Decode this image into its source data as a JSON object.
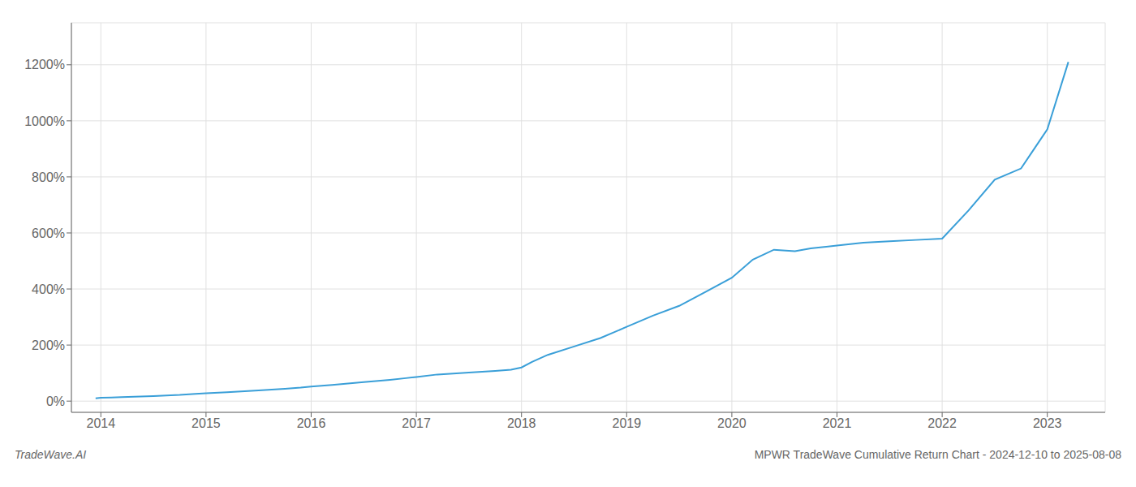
{
  "chart_data": {
    "type": "line",
    "title": "MPWR TradeWave Cumulative Return Chart - 2024-12-10 to 2025-08-08",
    "subtitle": "TradeWave.AI",
    "x": [
      2013.95,
      2014.0,
      2014.1,
      2014.2,
      2014.5,
      2014.75,
      2014.9,
      2015.0,
      2015.2,
      2015.5,
      2015.75,
      2015.9,
      2016.0,
      2016.2,
      2016.5,
      2016.75,
      2016.9,
      2017.0,
      2017.2,
      2017.5,
      2017.75,
      2017.9,
      2018.0,
      2018.1,
      2018.25,
      2018.5,
      2018.75,
      2019.0,
      2019.25,
      2019.5,
      2019.75,
      2020.0,
      2020.2,
      2020.4,
      2020.6,
      2020.75,
      2021.0,
      2021.25,
      2021.5,
      2021.75,
      2022.0,
      2022.25,
      2022.5,
      2022.75,
      2023.0,
      2023.2
    ],
    "values": [
      10,
      12,
      13,
      14,
      18,
      22,
      26,
      28,
      32,
      38,
      44,
      48,
      52,
      58,
      68,
      76,
      82,
      86,
      95,
      102,
      108,
      112,
      120,
      140,
      165,
      195,
      225,
      265,
      305,
      340,
      390,
      440,
      505,
      540,
      535,
      545,
      555,
      565,
      570,
      575,
      580,
      680,
      790,
      830,
      970,
      1210
    ],
    "color": "#3a9fd8",
    "xlim": [
      2013.72,
      2023.55
    ],
    "xticks": [
      2014,
      2015,
      2016,
      2017,
      2018,
      2019,
      2020,
      2021,
      2022,
      2023
    ],
    "ylim": [
      -40,
      1350
    ],
    "yticks": [
      {
        "value": 0,
        "label": "0%"
      },
      {
        "value": 200,
        "label": "200%"
      },
      {
        "value": 400,
        "label": "400%"
      },
      {
        "value": 600,
        "label": "600%"
      },
      {
        "value": 800,
        "label": "800%"
      },
      {
        "value": 1000,
        "label": "1000%"
      },
      {
        "value": 1200,
        "label": "1200%"
      }
    ],
    "grid": true
  }
}
